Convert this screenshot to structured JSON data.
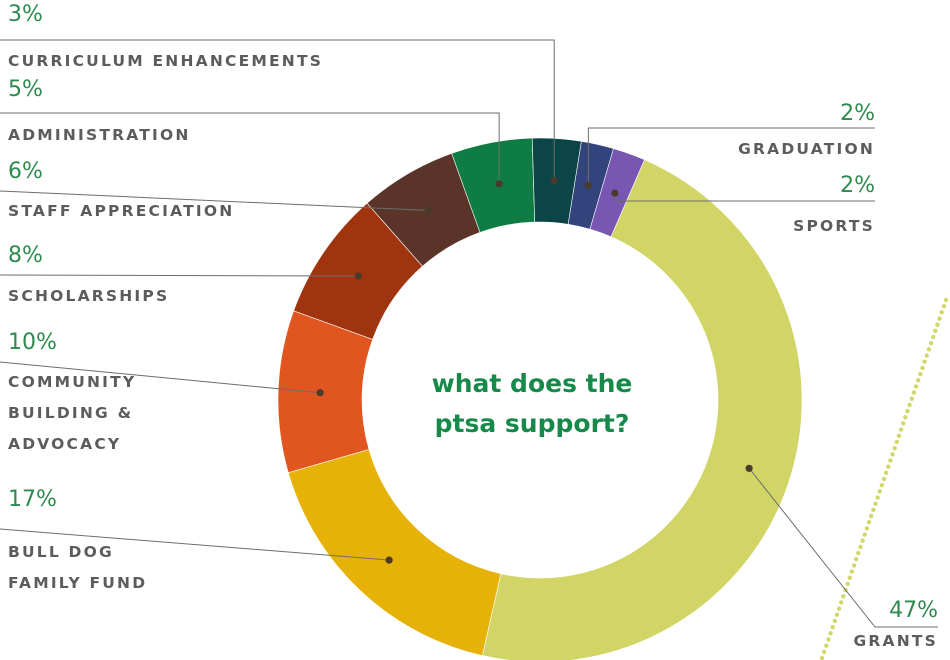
{
  "center_title": [
    "what does the",
    "ptsa support?"
  ],
  "chart_data": {
    "type": "pie",
    "donut": true,
    "title": "what does the ptsa support?",
    "slices": [
      {
        "label": "GRANTS",
        "lines": [
          "GRANTS"
        ],
        "pct_label": "47%",
        "value": 47,
        "color": "#d1d565"
      },
      {
        "label": "BULL DOG FAMILY FUND",
        "lines": [
          "BULL DOG",
          "FAMILY FUND"
        ],
        "pct_label": "17%",
        "value": 17,
        "color": "#e6b207"
      },
      {
        "label": "COMMUNITY BUILDING & ADVOCACY",
        "lines": [
          "COMMUNITY",
          "BUILDING &",
          "ADVOCACY"
        ],
        "pct_label": "10%",
        "value": 10,
        "color": "#e15620"
      },
      {
        "label": "SCHOLARSHIPS",
        "lines": [
          "SCHOLARSHIPS"
        ],
        "pct_label": "8%",
        "value": 8,
        "color": "#a0340f"
      },
      {
        "label": "STAFF APPRECIATION",
        "lines": [
          "STAFF APPRECIATION"
        ],
        "pct_label": "6%",
        "value": 6,
        "color": "#5a3428"
      },
      {
        "label": "ADMINISTRATION",
        "lines": [
          "ADMINISTRATION"
        ],
        "pct_label": "5%",
        "value": 5,
        "color": "#0f7c44"
      },
      {
        "label": "CURRICULUM ENHANCEMENTS",
        "lines": [
          "CURRICULUM ENHANCEMENTS"
        ],
        "pct_label": "3%",
        "value": 3,
        "color": "#0c4548"
      },
      {
        "label": "GRADUATION",
        "lines": [
          "GRADUATION"
        ],
        "pct_label": "2%",
        "value": 2,
        "color": "#33437c"
      },
      {
        "label": "SPORTS",
        "lines": [
          "SPORTS"
        ],
        "pct_label": "2%",
        "value": 2,
        "color": "#7856b2"
      }
    ],
    "legend": "none",
    "grid": false
  }
}
